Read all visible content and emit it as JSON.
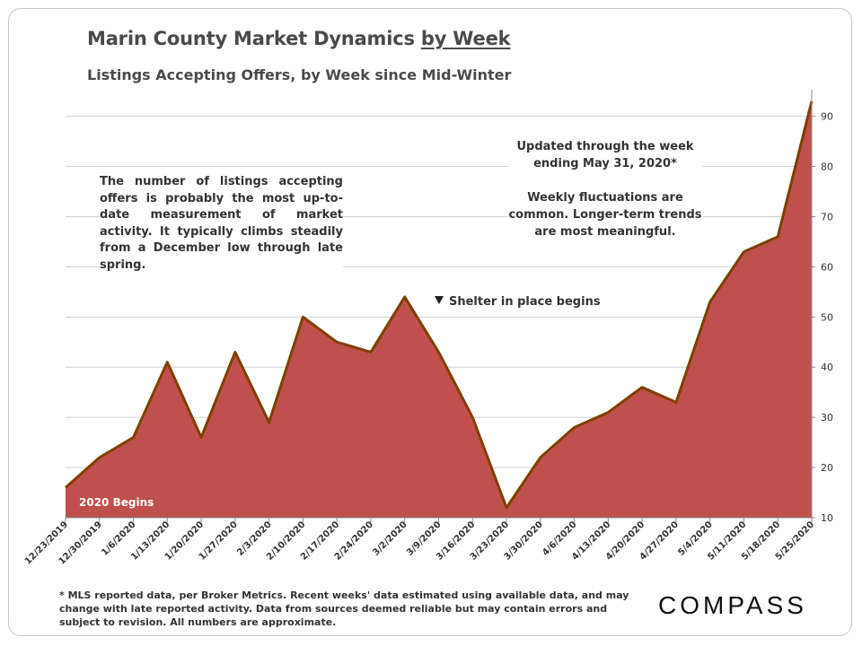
{
  "title_main": "Marin County Market Dynamics ",
  "title_emph": "by Week",
  "subtitle": "Listings Accepting Offers, by Week since Mid-Winter",
  "note_left": "The number of listings accepting offers is probably the most up-to-date measurement of market activity. It typically climbs steadily from a December low through late spring.",
  "note_right_1": "Updated through the week ending May 31, 2020*",
  "note_right_2": "Weekly fluctuations are common. Longer-term trends are most meaningful.",
  "annotation_shelter": "Shelter in place begins",
  "annotation_begins": "2020 Begins",
  "footnote": "* MLS reported data, per Broker Metrics. Recent weeks' data estimated using available data, and may change with late reported activity. Data from sources deemed reliable but may contain errors and subject to revision. All numbers are approximate.",
  "logo": "COMPASS",
  "colors": {
    "fill": "#c0504d",
    "line": "#7f3f00",
    "grid": "#d0d0d0"
  },
  "chart_data": {
    "type": "area",
    "x": [
      "12/23/2019",
      "12/30/2019",
      "1/6/2020",
      "1/13/2020",
      "1/20/2020",
      "1/27/2020",
      "2/3/2020",
      "2/10/2020",
      "2/17/2020",
      "2/24/2020",
      "3/2/2020",
      "3/9/2020",
      "3/16/2020",
      "3/23/2020",
      "3/30/2020",
      "4/6/2020",
      "4/13/2020",
      "4/20/2020",
      "4/27/2020",
      "5/4/2020",
      "5/11/2020",
      "5/18/2020",
      "5/25/2020"
    ],
    "values": [
      16,
      22,
      26,
      41,
      26,
      43,
      29,
      50,
      45,
      43,
      54,
      43,
      30,
      12,
      22,
      28,
      31,
      36,
      33,
      53,
      63,
      66,
      93
    ],
    "ylim": [
      10,
      95
    ],
    "yticks": [
      10,
      20,
      30,
      40,
      50,
      60,
      70,
      80,
      90
    ],
    "grid": true,
    "y_axis_side": "right"
  }
}
